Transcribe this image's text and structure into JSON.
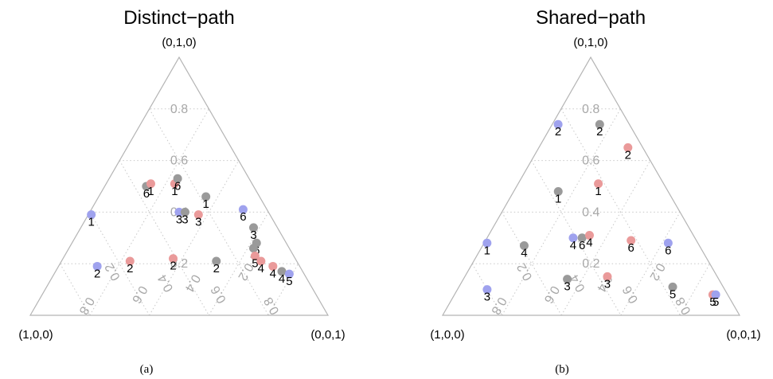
{
  "chart_data": [
    {
      "type": "scatter",
      "panel": "(a)",
      "title": "Distinct−path",
      "vertices": {
        "left": "(1,0,0)",
        "top": "(0,1,0)",
        "right": "(0,0,1)"
      },
      "ticks": [
        "0.2",
        "0.4",
        "0.6",
        "0.8"
      ],
      "grid": true,
      "colors": {
        "blue": "#9fa2ee",
        "red": "#ea9a9a",
        "gray": "#9a9a9a"
      },
      "points": [
        {
          "label": "1",
          "color": "blue",
          "a": 0.6,
          "b": 0.39,
          "c": 0.01
        },
        {
          "label": "6",
          "color": "gray",
          "a": 0.36,
          "b": 0.5,
          "c": 0.14
        },
        {
          "label": "1",
          "color": "red",
          "a": 0.34,
          "b": 0.51,
          "c": 0.15
        },
        {
          "label": "1",
          "color": "red",
          "a": 0.26,
          "b": 0.51,
          "c": 0.23
        },
        {
          "label": "6",
          "color": "gray",
          "a": 0.24,
          "b": 0.53,
          "c": 0.23
        },
        {
          "label": "3",
          "color": "blue",
          "a": 0.3,
          "b": 0.4,
          "c": 0.3
        },
        {
          "label": "3",
          "color": "gray",
          "a": 0.28,
          "b": 0.4,
          "c": 0.32
        },
        {
          "label": "3",
          "color": "red",
          "a": 0.24,
          "b": 0.39,
          "c": 0.37
        },
        {
          "label": "1",
          "color": "gray",
          "a": 0.18,
          "b": 0.46,
          "c": 0.36
        },
        {
          "label": "6",
          "color": "blue",
          "a": 0.08,
          "b": 0.41,
          "c": 0.51
        },
        {
          "label": "3",
          "color": "gray",
          "a": 0.08,
          "b": 0.34,
          "c": 0.58
        },
        {
          "label": "6",
          "color": "gray",
          "a": 0.1,
          "b": 0.28,
          "c": 0.62
        },
        {
          "label": "4",
          "color": "gray",
          "a": 0.12,
          "b": 0.26,
          "c": 0.62
        },
        {
          "label": "2",
          "color": "blue",
          "a": 0.68,
          "b": 0.19,
          "c": 0.13
        },
        {
          "label": "2",
          "color": "red",
          "a": 0.56,
          "b": 0.21,
          "c": 0.23
        },
        {
          "label": "2",
          "color": "red",
          "a": 0.41,
          "b": 0.22,
          "c": 0.37
        },
        {
          "label": "2",
          "color": "gray",
          "a": 0.27,
          "b": 0.21,
          "c": 0.52
        },
        {
          "label": "5",
          "color": "red",
          "a": 0.13,
          "b": 0.23,
          "c": 0.64
        },
        {
          "label": "4",
          "color": "red",
          "a": 0.12,
          "b": 0.21,
          "c": 0.67
        },
        {
          "label": "4",
          "color": "red",
          "a": 0.09,
          "b": 0.19,
          "c": 0.72
        },
        {
          "label": "4",
          "color": "gray",
          "a": 0.07,
          "b": 0.17,
          "c": 0.76
        },
        {
          "label": "5",
          "color": "blue",
          "a": 0.05,
          "b": 0.16,
          "c": 0.79
        }
      ]
    },
    {
      "type": "scatter",
      "panel": "(b)",
      "title": "Shared−path",
      "vertices": {
        "left": "(1,0,0)",
        "top": "(0,1,0)",
        "right": "(0,0,1)"
      },
      "ticks": [
        "0.2",
        "0.4",
        "0.6",
        "0.8"
      ],
      "grid": true,
      "colors": {
        "blue": "#9fa2ee",
        "red": "#ea9a9a",
        "gray": "#9a9a9a"
      },
      "points": [
        {
          "label": "2",
          "color": "blue",
          "a": 0.24,
          "b": 0.74,
          "c": 0.02
        },
        {
          "label": "2",
          "color": "gray",
          "a": 0.1,
          "b": 0.74,
          "c": 0.16
        },
        {
          "label": "2",
          "color": "red",
          "a": 0.05,
          "b": 0.65,
          "c": 0.3
        },
        {
          "label": "1",
          "color": "red",
          "a": 0.22,
          "b": 0.51,
          "c": 0.27
        },
        {
          "label": "1",
          "color": "gray",
          "a": 0.37,
          "b": 0.48,
          "c": 0.15
        },
        {
          "label": "1",
          "color": "blue",
          "a": 0.71,
          "b": 0.28,
          "c": 0.01
        },
        {
          "label": "4",
          "color": "gray",
          "a": 0.59,
          "b": 0.27,
          "c": 0.14
        },
        {
          "label": "4",
          "color": "blue",
          "a": 0.41,
          "b": 0.3,
          "c": 0.29
        },
        {
          "label": "6",
          "color": "gray",
          "a": 0.38,
          "b": 0.3,
          "c": 0.32
        },
        {
          "label": "4",
          "color": "red",
          "a": 0.35,
          "b": 0.31,
          "c": 0.34
        },
        {
          "label": "6",
          "color": "red",
          "a": 0.22,
          "b": 0.29,
          "c": 0.49
        },
        {
          "label": "6",
          "color": "blue",
          "a": 0.1,
          "b": 0.28,
          "c": 0.62
        },
        {
          "label": "3",
          "color": "blue",
          "a": 0.8,
          "b": 0.1,
          "c": 0.1
        },
        {
          "label": "3",
          "color": "gray",
          "a": 0.51,
          "b": 0.14,
          "c": 0.35
        },
        {
          "label": "3",
          "color": "red",
          "a": 0.37,
          "b": 0.15,
          "c": 0.48
        },
        {
          "label": "5",
          "color": "gray",
          "a": 0.17,
          "b": 0.11,
          "c": 0.72
        },
        {
          "label": "5",
          "color": "red",
          "a": 0.05,
          "b": 0.08,
          "c": 0.87
        },
        {
          "label": "5",
          "color": "blue",
          "a": 0.04,
          "b": 0.08,
          "c": 0.88
        }
      ]
    }
  ]
}
